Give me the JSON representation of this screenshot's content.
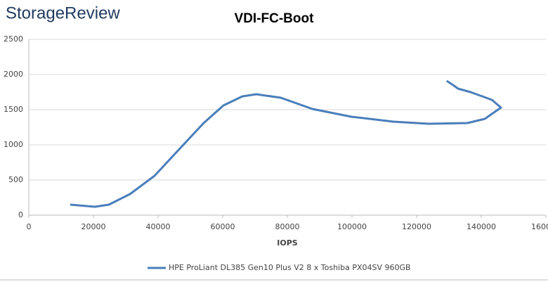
{
  "brand": "StorageReview",
  "chart_data": {
    "type": "line",
    "title": "VDI-FC-Boot",
    "x_label": "IOPS",
    "xlim": [
      0,
      160000
    ],
    "xticks": [
      0,
      20000,
      40000,
      60000,
      80000,
      100000,
      120000,
      140000,
      160000
    ],
    "ylim": [
      0,
      2500
    ],
    "yticks": [
      0,
      500,
      1000,
      1500,
      2000,
      2500
    ],
    "grid": true,
    "legend": "bottom",
    "series": [
      {
        "name": "HPE ProLiant DL385 Gen10 Plus V2 8 x Toshiba PX04SV 960GB",
        "color": "#4a7ebb",
        "x": [
          12800,
          20400,
          24800,
          31300,
          38900,
          47600,
          54100,
          60200,
          66100,
          70400,
          78000,
          87800,
          99800,
          112800,
          123700,
          135700,
          141100,
          146100,
          143300,
          136700,
          132800,
          131300,
          129300
        ],
        "values": [
          150,
          120,
          150,
          300,
          560,
          990,
          1310,
          1560,
          1690,
          1720,
          1670,
          1510,
          1400,
          1330,
          1300,
          1310,
          1370,
          1530,
          1640,
          1750,
          1800,
          1850,
          1910
        ]
      }
    ]
  }
}
